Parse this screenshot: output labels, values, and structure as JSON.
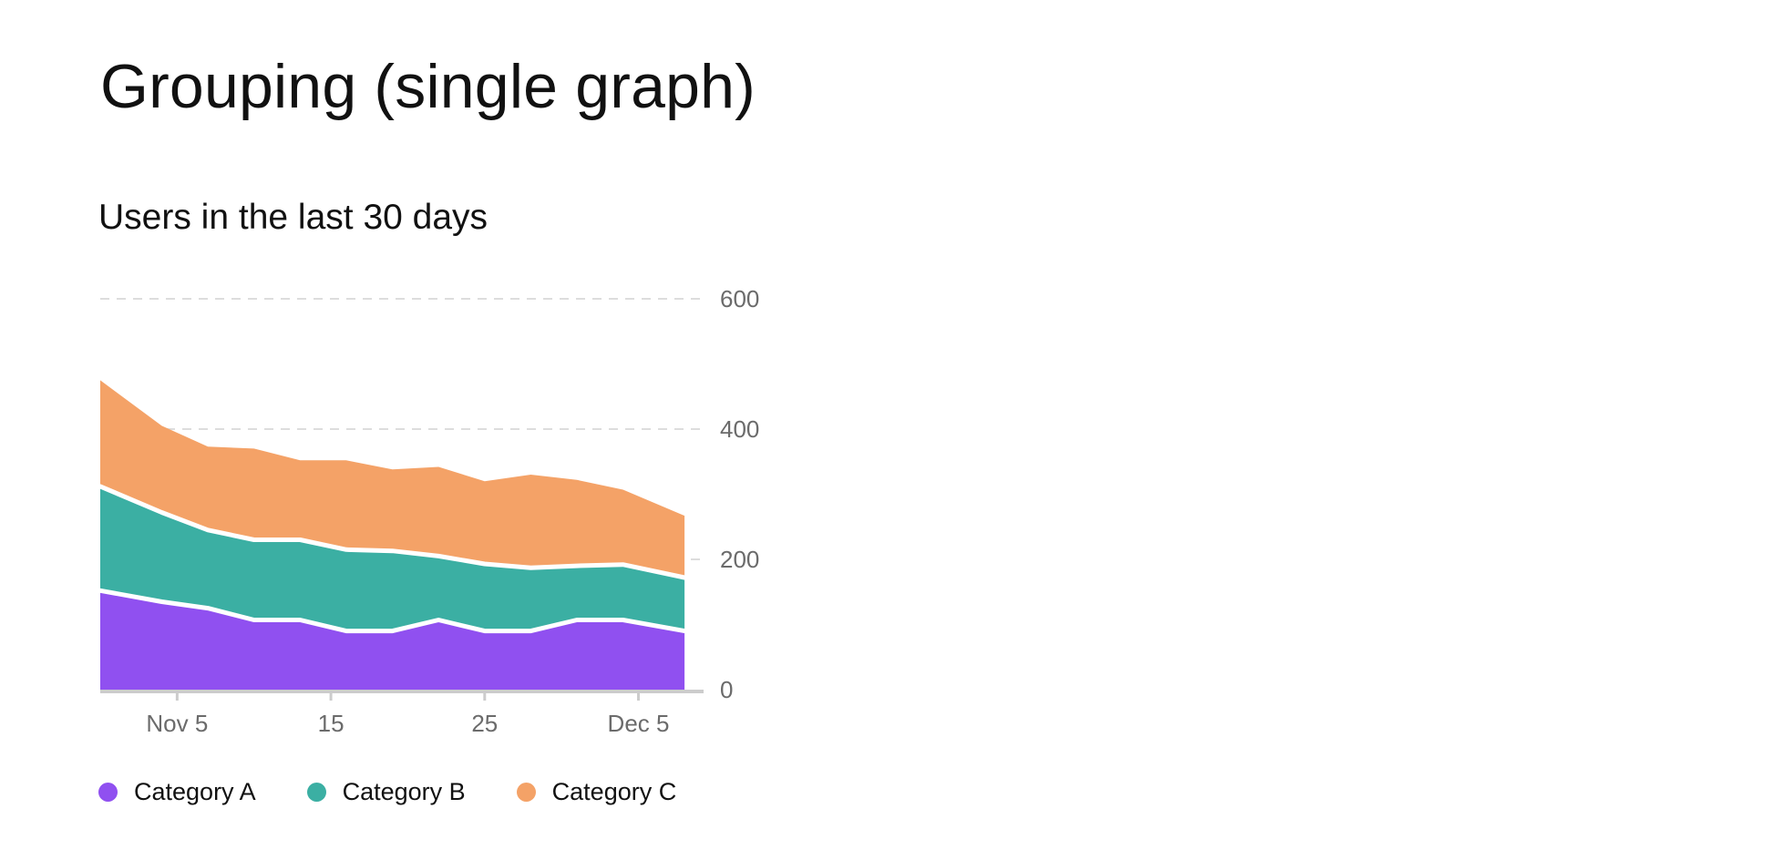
{
  "header": {
    "title": "Grouping (single graph)"
  },
  "chart": {
    "title": "Users in the last 30 days"
  },
  "colors": {
    "series_a": "#9050F0",
    "series_b": "#3BAFA3",
    "series_c": "#F4A267",
    "grid": "#dddddd",
    "axis": "#cccccc",
    "separator": "#ffffff"
  },
  "legend": {
    "items": [
      {
        "label": "Category A",
        "color_key": "series_a"
      },
      {
        "label": "Category B",
        "color_key": "series_b"
      },
      {
        "label": "Category C",
        "color_key": "series_c"
      }
    ]
  },
  "chart_data": {
    "type": "area",
    "stacked": true,
    "title": "Users in the last 30 days",
    "xlabel": "",
    "ylabel": "",
    "ylim": [
      0,
      600
    ],
    "yticks": [
      0,
      200,
      400,
      600
    ],
    "ytick_labels": [
      "0",
      "200",
      "400",
      "600"
    ],
    "y_axis_position": "right",
    "grid": "horizontal dashed",
    "legend_position": "bottom-left",
    "x_type": "date",
    "x_range": [
      "2024-10-31",
      "2024-12-09"
    ],
    "xticks": [
      "2024-11-05",
      "2024-11-15",
      "2024-11-25",
      "2024-12-05"
    ],
    "xtick_labels": [
      "Nov 5",
      "15",
      "25",
      "Dec 5"
    ],
    "x": [
      "2024-10-31",
      "2024-11-04",
      "2024-11-07",
      "2024-11-10",
      "2024-11-13",
      "2024-11-16",
      "2024-11-19",
      "2024-11-22",
      "2024-11-25",
      "2024-11-28",
      "2024-12-01",
      "2024-12-04",
      "2024-12-08"
    ],
    "series": [
      {
        "name": "Category A",
        "color_key": "series_a",
        "values": [
          152,
          135,
          125,
          107,
          107,
          90,
          90,
          107,
          90,
          90,
          107,
          107,
          90
        ]
      },
      {
        "name": "Category B",
        "color_key": "series_b",
        "values": [
          160,
          137,
          120,
          123,
          123,
          125,
          123,
          98,
          103,
          97,
          83,
          85,
          82
        ]
      },
      {
        "name": "Category C",
        "color_key": "series_c",
        "values": [
          163,
          133,
          128,
          140,
          122,
          137,
          125,
          137,
          127,
          143,
          132,
          115,
          95
        ]
      }
    ]
  }
}
